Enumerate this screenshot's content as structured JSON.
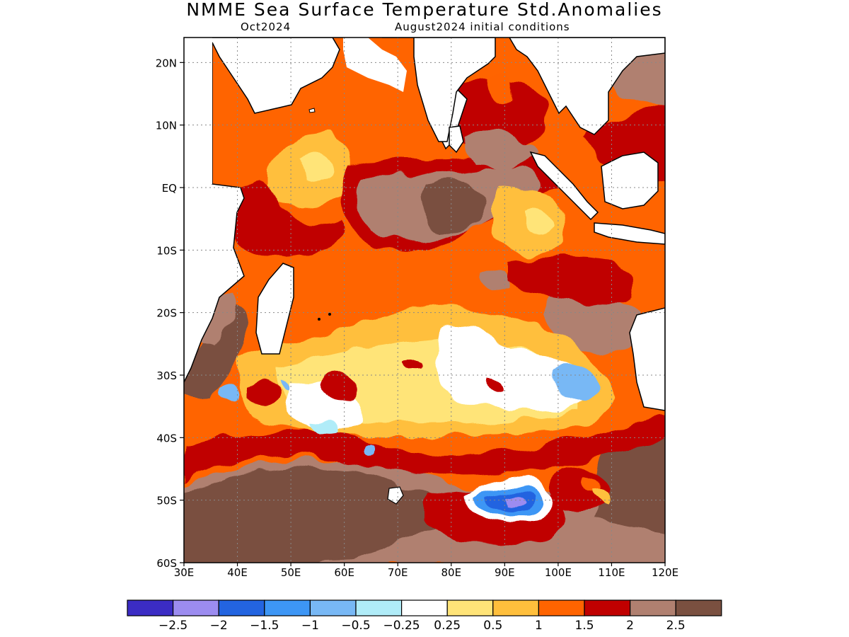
{
  "title": "NMME Sea Surface Temperature Std.Anomalies",
  "subtitle_left": "Oct2024",
  "subtitle_right": "August2024 initial conditions",
  "map": {
    "lon_range": [
      30,
      120
    ],
    "lat_range": [
      -60,
      24
    ],
    "lat_ticks": [
      "20N",
      "10N",
      "EQ",
      "10S",
      "20S",
      "30S",
      "40S",
      "50S",
      "60S"
    ],
    "lat_values": [
      20,
      10,
      0,
      -10,
      -20,
      -30,
      -40,
      -50,
      -60
    ],
    "lon_ticks": [
      "30E",
      "40E",
      "50E",
      "60E",
      "70E",
      "80E",
      "90E",
      "100E",
      "110E",
      "120E"
    ],
    "lon_values": [
      30,
      40,
      50,
      60,
      70,
      80,
      90,
      100,
      110,
      120
    ],
    "grid": true
  },
  "colorbar": {
    "colors": [
      "#3b2cc4",
      "#9c8cf0",
      "#2364e0",
      "#3d96f5",
      "#78b8f5",
      "#b0ecf8",
      "#ffffff",
      "#ffe478",
      "#ffbf3c",
      "#ff6400",
      "#c00000",
      "#b08070",
      "#7a5040"
    ],
    "labels": [
      "-2.5",
      "-2",
      "-1.5",
      "-1",
      "-0.5",
      "-0.25",
      "0.25",
      "0.5",
      "1",
      "1.5",
      "2",
      "2.5"
    ]
  }
}
